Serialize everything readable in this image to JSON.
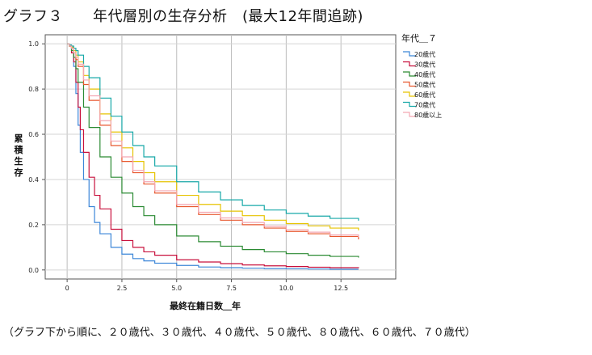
{
  "figure": {
    "title": "グラフ３　　年代層別の生存分析　(最大12年間追跡)",
    "caption": "（グラフ下から順に、２０歳代、３０歳代、４０歳代、５０歳代、８０歳代、６０歳代、７０歳代）"
  },
  "chart_data": {
    "type": "line",
    "title": "グラフ３　　年代層別の生存分析　(最大12年間追跡)",
    "xlabel": "最終在籍日数＿年",
    "ylabel": "累積生存",
    "xlim": [
      -1,
      15
    ],
    "ylim": [
      -0.04,
      1.04
    ],
    "x_ticks": [
      "0",
      "2.5",
      "5.0",
      "7.5",
      "10.0",
      "12.5"
    ],
    "y_ticks": [
      "0.0",
      "0.2",
      "0.4",
      "0.6",
      "0.8",
      "1.0"
    ],
    "x_tick_values": [
      0,
      2.5,
      5.0,
      7.5,
      10.0,
      12.5
    ],
    "y_tick_values": [
      0.0,
      0.2,
      0.4,
      0.6,
      0.8,
      1.0
    ],
    "grid": true,
    "legend_title": "年代＿７",
    "legend_position": "right",
    "step": true,
    "series": [
      {
        "name": "20歳代",
        "color": "#3b86d8",
        "x": [
          0,
          0.1,
          0.2,
          0.3,
          0.4,
          0.5,
          0.6,
          0.75,
          1.0,
          1.25,
          1.5,
          2.0,
          2.5,
          3.0,
          3.5,
          4.0,
          5.0,
          6.0,
          7.0,
          8.0,
          9.0,
          10.0,
          11.0,
          12.0,
          13.3
        ],
        "y": [
          1.0,
          0.99,
          0.96,
          0.9,
          0.78,
          0.64,
          0.52,
          0.4,
          0.28,
          0.21,
          0.16,
          0.1,
          0.07,
          0.05,
          0.04,
          0.03,
          0.02,
          0.013,
          0.01,
          0.008,
          0.006,
          0.005,
          0.004,
          0.003,
          0.003
        ]
      },
      {
        "name": "30歳代",
        "color": "#c8103c",
        "x": [
          0,
          0.1,
          0.2,
          0.3,
          0.4,
          0.5,
          0.6,
          0.75,
          1.0,
          1.25,
          1.5,
          2.0,
          2.5,
          3.0,
          3.5,
          4.0,
          5.0,
          6.0,
          7.0,
          8.0,
          9.0,
          10.0,
          11.0,
          12.0,
          13.3
        ],
        "y": [
          1.0,
          0.99,
          0.96,
          0.92,
          0.83,
          0.72,
          0.62,
          0.52,
          0.41,
          0.33,
          0.27,
          0.18,
          0.13,
          0.1,
          0.08,
          0.065,
          0.045,
          0.035,
          0.028,
          0.022,
          0.018,
          0.015,
          0.012,
          0.01,
          0.008
        ]
      },
      {
        "name": "40歳代",
        "color": "#2a8a32",
        "x": [
          0,
          0.1,
          0.2,
          0.3,
          0.4,
          0.5,
          0.75,
          1.0,
          1.5,
          2.0,
          2.5,
          3.0,
          3.5,
          4.0,
          5.0,
          6.0,
          7.0,
          8.0,
          9.0,
          10.0,
          11.0,
          12.0,
          13.3
        ],
        "y": [
          1.0,
          0.99,
          0.97,
          0.94,
          0.89,
          0.83,
          0.72,
          0.63,
          0.5,
          0.41,
          0.34,
          0.28,
          0.24,
          0.2,
          0.15,
          0.125,
          0.105,
          0.09,
          0.08,
          0.072,
          0.065,
          0.06,
          0.055
        ]
      },
      {
        "name": "50歳代",
        "color": "#e8572e",
        "x": [
          0,
          0.1,
          0.2,
          0.3,
          0.4,
          0.5,
          0.75,
          1.0,
          1.5,
          2.0,
          2.5,
          3.0,
          3.5,
          4.0,
          5.0,
          6.0,
          7.0,
          8.0,
          9.0,
          10.0,
          11.0,
          12.0,
          13.3
        ],
        "y": [
          1.0,
          0.99,
          0.98,
          0.96,
          0.93,
          0.9,
          0.82,
          0.75,
          0.64,
          0.55,
          0.48,
          0.43,
          0.38,
          0.34,
          0.28,
          0.245,
          0.22,
          0.2,
          0.185,
          0.17,
          0.16,
          0.148,
          0.135
        ]
      },
      {
        "name": "60歳代",
        "color": "#e6c300",
        "x": [
          0,
          0.1,
          0.2,
          0.3,
          0.4,
          0.5,
          0.75,
          1.0,
          1.5,
          2.0,
          2.5,
          3.0,
          3.5,
          4.0,
          5.0,
          6.0,
          7.0,
          8.0,
          9.0,
          10.0,
          11.0,
          12.0,
          13.3
        ],
        "y": [
          1.0,
          0.99,
          0.985,
          0.97,
          0.95,
          0.92,
          0.86,
          0.8,
          0.69,
          0.61,
          0.54,
          0.48,
          0.43,
          0.39,
          0.33,
          0.29,
          0.26,
          0.24,
          0.22,
          0.205,
          0.195,
          0.185,
          0.175
        ]
      },
      {
        "name": "70歳代",
        "color": "#17a8a8",
        "x": [
          0,
          0.1,
          0.2,
          0.3,
          0.4,
          0.5,
          0.75,
          1.0,
          1.5,
          2.0,
          2.5,
          3.0,
          3.5,
          4.0,
          5.0,
          6.0,
          7.0,
          8.0,
          9.0,
          10.0,
          11.0,
          12.0,
          13.3
        ],
        "y": [
          1.0,
          0.995,
          0.99,
          0.98,
          0.97,
          0.95,
          0.9,
          0.85,
          0.76,
          0.68,
          0.61,
          0.55,
          0.5,
          0.46,
          0.39,
          0.345,
          0.31,
          0.285,
          0.265,
          0.25,
          0.238,
          0.228,
          0.218
        ]
      },
      {
        "name": "80歳以上",
        "color": "#f4a6b2",
        "x": [
          0,
          0.1,
          0.2,
          0.3,
          0.4,
          0.5,
          0.75,
          1.0,
          1.5,
          2.0,
          2.5,
          3.0,
          3.5,
          4.0,
          5.0,
          6.0,
          7.0,
          8.0,
          9.0,
          10.0,
          11.0,
          12.0,
          13.3
        ],
        "y": [
          1.0,
          0.99,
          0.98,
          0.96,
          0.94,
          0.91,
          0.84,
          0.77,
          0.66,
          0.57,
          0.5,
          0.44,
          0.39,
          0.35,
          0.29,
          0.255,
          0.23,
          0.21,
          0.193,
          0.178,
          0.167,
          0.155,
          0.145
        ]
      }
    ]
  }
}
